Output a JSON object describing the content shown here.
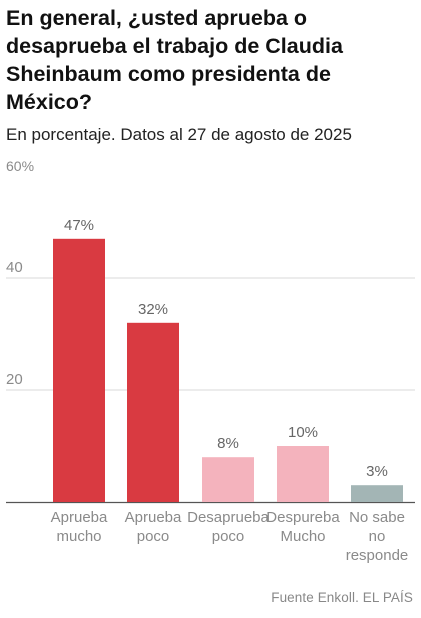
{
  "title": "En general, ¿usted aprueba o desaprueba el trabajo de Claudia Sheinbaum como presidenta de México?",
  "subtitle": "En porcentaje. Datos al 27 de agosto de 2025",
  "source": "Fuente Enkoll. EL PAÍS",
  "chart_data": {
    "type": "bar",
    "title": "En general, ¿usted aprueba o desaprueba el trabajo de Claudia Sheinbaum como presidenta de México?",
    "subtitle": "En porcentaje. Datos al 27 de agosto de 2025",
    "categories": [
      [
        "Aprueba",
        "mucho"
      ],
      [
        "Aprueba",
        "poco"
      ],
      [
        "Desaprueba",
        "poco"
      ],
      [
        "Despureba",
        "Mucho"
      ],
      [
        "No sabe",
        "no",
        "responde"
      ]
    ],
    "values": [
      47,
      32,
      8,
      10,
      3
    ],
    "data_labels": [
      "47%",
      "32%",
      "8%",
      "10%",
      "3%"
    ],
    "colors": [
      "#d93a41",
      "#d93a41",
      "#f4b3bd",
      "#f4b3bd",
      "#a3b5b5"
    ],
    "ylim": [
      0,
      60
    ],
    "yticks": [
      {
        "value": 20,
        "label": "20"
      },
      {
        "value": 40,
        "label": "40"
      },
      {
        "value": 60,
        "label": "60%"
      }
    ],
    "grid": true,
    "legend": "none"
  }
}
